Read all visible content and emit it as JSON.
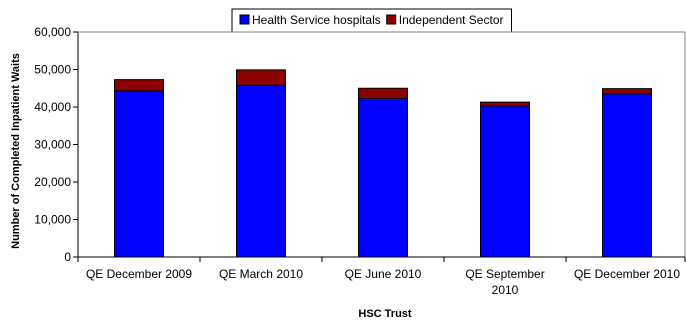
{
  "chart_data": {
    "type": "bar",
    "stacked": true,
    "title": "",
    "xlabel": "HSC Trust",
    "ylabel": "Number of Completed Inpatient Waits",
    "ylim": [
      0,
      60000
    ],
    "yticks": [
      "0",
      "10,000",
      "20,000",
      "30,000",
      "40,000",
      "50,000",
      "60,000"
    ],
    "categories": [
      [
        "QE December 2009"
      ],
      [
        "QE March 2010"
      ],
      [
        "QE June 2010"
      ],
      [
        "QE September",
        "2010"
      ],
      [
        "QE December 2010"
      ]
    ],
    "series": [
      {
        "name": "Health Service hospitals",
        "color": "#0000ff",
        "values": [
          44300,
          45800,
          42300,
          40300,
          43500
        ]
      },
      {
        "name": "Independent Sector",
        "color": "#8b0000",
        "values": [
          3000,
          4100,
          2700,
          1000,
          1400
        ]
      }
    ],
    "grid": false,
    "legend_position": "top"
  }
}
